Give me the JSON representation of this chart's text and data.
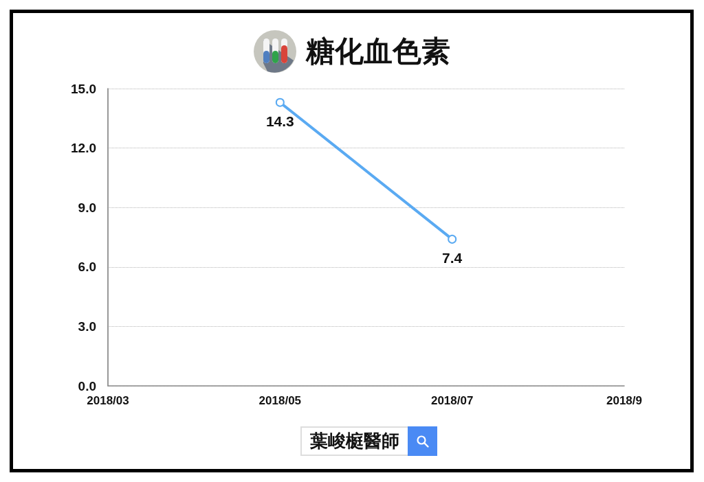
{
  "chart_data": {
    "type": "line",
    "title": "糖化血色素",
    "categories": [
      "2018/03",
      "2018/05",
      "2018/07",
      "2018/9"
    ],
    "series": [
      {
        "color": "#5aaaf2",
        "values": [
          null,
          14.3,
          7.4,
          null
        ]
      }
    ],
    "ylim": [
      0,
      15
    ],
    "yticks": [
      {
        "value": 0,
        "label": "0.0"
      },
      {
        "value": 3,
        "label": "3.0"
      },
      {
        "value": 6,
        "label": "6.0"
      },
      {
        "value": 9,
        "label": "9.0"
      },
      {
        "value": 12,
        "label": "12.0"
      },
      {
        "value": 15,
        "label": "15.0"
      }
    ],
    "grid": "y",
    "marker": "circle",
    "line_style": "solid",
    "data_labels": true,
    "annotations": [
      "葉峻榳醫師"
    ]
  }
}
